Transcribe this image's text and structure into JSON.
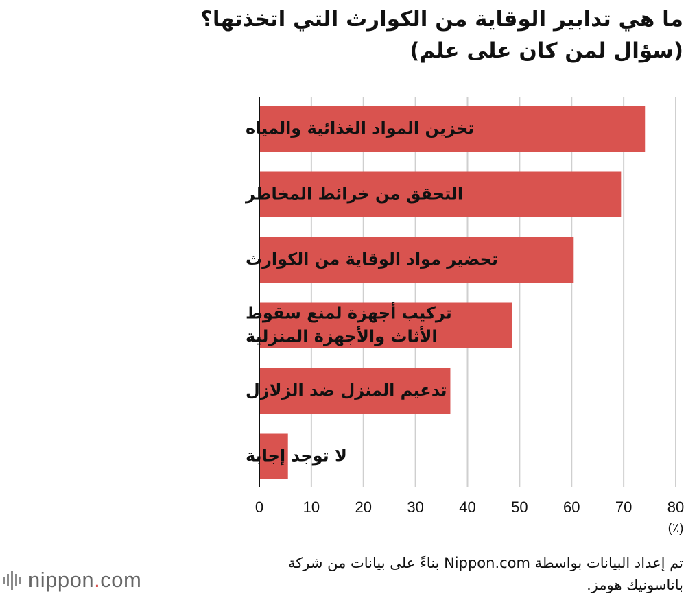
{
  "header": {
    "title_line1": "ما هي تدابير الوقاية من الكوارث التي اتخذتها؟",
    "title_line2": "(سؤال لمن كان على علم)"
  },
  "chart_data": {
    "type": "bar",
    "orientation": "horizontal",
    "categories": [
      [
        "تخزين المواد الغذائية والمياه"
      ],
      [
        "التحقق من خرائط المخاطر"
      ],
      [
        "تحضير مواد الوقاية من الكوارث"
      ],
      [
        "تركيب أجهزة لمنع سقوط",
        "الأثاث والأجهزة المنزلية"
      ],
      [
        "تدعيم المنزل ضد الزلازل"
      ],
      [
        "لا توجد إجابة"
      ]
    ],
    "values": [
      74.1,
      69.5,
      60.4,
      48.5,
      36.7,
      5.5
    ],
    "xlim": [
      0,
      80
    ],
    "xticks": [
      "0",
      "10",
      "20",
      "30",
      "40",
      "50",
      "60",
      "70",
      "80"
    ],
    "xunit": "(٪)",
    "bar_color": "#d9534f",
    "grid": true
  },
  "footer": {
    "note_line1": "تم إعداد البيانات بواسطة Nippon.com بناءً على بيانات من شركة",
    "note_line2": "باناسونيك هومز.",
    "logo_text": "nippon",
    "logo_dot": ".",
    "logo_suffix": "com"
  }
}
